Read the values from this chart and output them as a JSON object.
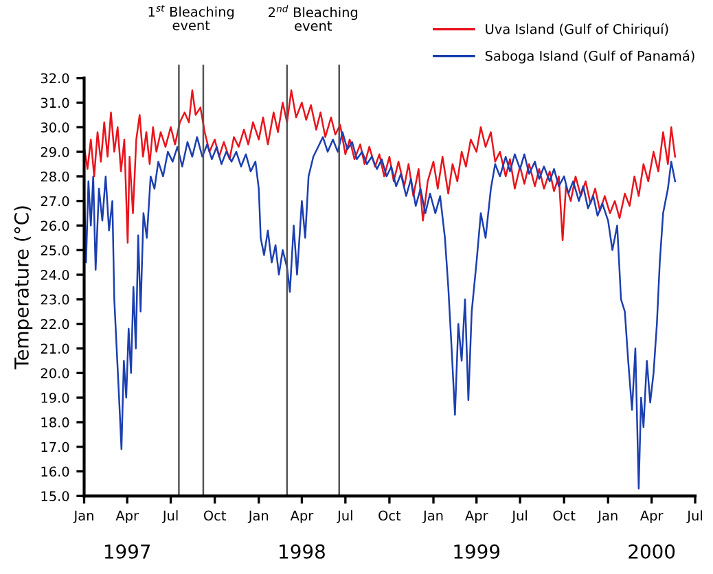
{
  "chart_data": {
    "type": "line",
    "ylabel": "Temperature (°C)",
    "legend": "top right",
    "grid": false,
    "marker": "none",
    "line_style": "solid",
    "xlim": [
      "1997-01-01",
      "2000-07-01"
    ],
    "xticks": [
      {
        "value": "1997-01-01",
        "label": "Jan"
      },
      {
        "value": "1997-04-01",
        "label": "Apr"
      },
      {
        "value": "1997-07-01",
        "label": "Jul"
      },
      {
        "value": "1997-10-01",
        "label": "Oct"
      },
      {
        "value": "1998-01-01",
        "label": "Jan"
      },
      {
        "value": "1998-04-01",
        "label": "Apr"
      },
      {
        "value": "1998-07-01",
        "label": "Jul"
      },
      {
        "value": "1998-10-01",
        "label": "Oct"
      },
      {
        "value": "1999-01-01",
        "label": "Jan"
      },
      {
        "value": "1999-04-01",
        "label": "Apr"
      },
      {
        "value": "1999-07-01",
        "label": "Jul"
      },
      {
        "value": "1999-10-01",
        "label": "Oct"
      },
      {
        "value": "2000-01-01",
        "label": "Jan"
      },
      {
        "value": "2000-04-01",
        "label": "Apr"
      },
      {
        "value": "2000-07-01",
        "label": "Jul"
      }
    ],
    "ylim": [
      15,
      32
    ],
    "yticks": [
      {
        "value": 15,
        "label": "15.0"
      },
      {
        "value": 16,
        "label": "16.0"
      },
      {
        "value": 17,
        "label": "17.0"
      },
      {
        "value": 18,
        "label": "18.0"
      },
      {
        "value": 19,
        "label": "19.0"
      },
      {
        "value": 20,
        "label": "20.0"
      },
      {
        "value": 21,
        "label": "21.0"
      },
      {
        "value": 22,
        "label": "22.0"
      },
      {
        "value": 23,
        "label": "23.0"
      },
      {
        "value": 24,
        "label": "24.0"
      },
      {
        "value": 25,
        "label": "25.0"
      },
      {
        "value": 26,
        "label": "26.0"
      },
      {
        "value": 27,
        "label": "27.0"
      },
      {
        "value": 28,
        "label": "28.0"
      },
      {
        "value": 29,
        "label": "29.0"
      },
      {
        "value": 30,
        "label": "30.0"
      },
      {
        "value": 31,
        "label": "31.0"
      },
      {
        "value": 32,
        "label": "32.0"
      }
    ],
    "ref_lines": [
      {
        "axis": "x",
        "value": "1997-07-18",
        "color": "#555555"
      },
      {
        "axis": "x",
        "value": "1997-09-07",
        "color": "#555555"
      },
      {
        "axis": "x",
        "value": "1998-03-01",
        "color": "#555555"
      },
      {
        "axis": "x",
        "value": "1998-06-18",
        "color": "#555555"
      }
    ],
    "annotations": [
      "1$^{st}$ Bleaching\nevent",
      "2$^{nd}$ Bleaching\nevent",
      "1997",
      "1998",
      "1999",
      "2000"
    ],
    "series": [
      {
        "name": "Uva Island (Gulf of Chiriquí)",
        "color": "#e8141c",
        "x": [
          "1997-01-01",
          "1997-01-08",
          "1997-01-15",
          "1997-01-22",
          "1997-01-29",
          "1997-02-05",
          "1997-02-12",
          "1997-02-19",
          "1997-02-26",
          "1997-03-05",
          "1997-03-12",
          "1997-03-19",
          "1997-03-26",
          "1997-04-02",
          "1997-04-06",
          "1997-04-13",
          "1997-04-20",
          "1997-04-27",
          "1997-05-04",
          "1997-05-11",
          "1997-05-18",
          "1997-05-25",
          "1997-06-01",
          "1997-06-10",
          "1997-06-20",
          "1997-07-01",
          "1997-07-10",
          "1997-07-20",
          "1997-07-30",
          "1997-08-08",
          "1997-08-15",
          "1997-08-22",
          "1997-09-01",
          "1997-09-10",
          "1997-09-20",
          "1997-10-01",
          "1997-10-10",
          "1997-10-20",
          "1997-11-01",
          "1997-11-10",
          "1997-11-20",
          "1997-12-01",
          "1997-12-10",
          "1997-12-20",
          "1998-01-01",
          "1998-01-10",
          "1998-01-20",
          "1998-02-01",
          "1998-02-10",
          "1998-02-20",
          "1998-03-01",
          "1998-03-10",
          "1998-03-20",
          "1998-04-01",
          "1998-04-10",
          "1998-04-20",
          "1998-05-01",
          "1998-05-10",
          "1998-05-20",
          "1998-06-01",
          "1998-06-10",
          "1998-06-20",
          "1998-07-01",
          "1998-07-10",
          "1998-07-20",
          "1998-08-01",
          "1998-08-10",
          "1998-08-20",
          "1998-09-01",
          "1998-09-10",
          "1998-09-20",
          "1998-10-01",
          "1998-10-10",
          "1998-10-20",
          "1998-11-01",
          "1998-11-10",
          "1998-11-20",
          "1998-12-01",
          "1998-12-10",
          "1998-12-20",
          "1999-01-01",
          "1999-01-10",
          "1999-01-20",
          "1999-02-01",
          "1999-02-10",
          "1999-02-20",
          "1999-03-01",
          "1999-03-10",
          "1999-03-20",
          "1999-04-01",
          "1999-04-10",
          "1999-04-20",
          "1999-05-01",
          "1999-05-10",
          "1999-05-20",
          "1999-06-01",
          "1999-06-10",
          "1999-06-20",
          "1999-07-01",
          "1999-07-10",
          "1999-07-20",
          "1999-08-01",
          "1999-08-10",
          "1999-08-20",
          "1999-09-01",
          "1999-09-10",
          "1999-09-20",
          "1999-09-28",
          "1999-10-05",
          "1999-10-15",
          "1999-10-25",
          "1999-11-05",
          "1999-11-15",
          "1999-11-25",
          "1999-12-05",
          "1999-12-15",
          "1999-12-25",
          "2000-01-05",
          "2000-01-15",
          "2000-01-25",
          "2000-02-05",
          "2000-02-15",
          "2000-02-25",
          "2000-03-05",
          "2000-03-15",
          "2000-03-25",
          "2000-04-05",
          "2000-04-15",
          "2000-04-25",
          "2000-05-05",
          "2000-05-12",
          "2000-05-20"
        ],
        "values": [
          29.2,
          28.3,
          29.5,
          28.0,
          29.8,
          28.6,
          30.2,
          28.8,
          30.6,
          29.0,
          30.0,
          28.2,
          29.5,
          25.3,
          28.8,
          26.5,
          29.5,
          30.5,
          28.8,
          29.8,
          28.5,
          30.0,
          29.0,
          29.8,
          29.2,
          30.0,
          29.3,
          30.2,
          30.6,
          30.2,
          31.5,
          30.5,
          30.8,
          29.8,
          29.0,
          29.5,
          28.8,
          29.4,
          28.7,
          29.6,
          29.2,
          29.9,
          29.3,
          30.2,
          29.5,
          30.4,
          29.3,
          30.6,
          29.8,
          31.0,
          30.2,
          31.5,
          30.4,
          31.0,
          30.3,
          30.9,
          29.9,
          30.6,
          29.6,
          30.4,
          29.7,
          30.1,
          28.9,
          29.5,
          28.7,
          29.3,
          28.5,
          29.2,
          28.4,
          28.9,
          28.0,
          28.8,
          27.8,
          28.6,
          27.6,
          28.5,
          27.2,
          28.3,
          26.2,
          27.8,
          28.6,
          27.5,
          28.8,
          27.3,
          28.5,
          27.8,
          29.0,
          28.4,
          29.5,
          29.0,
          30.0,
          29.2,
          29.8,
          28.6,
          29.0,
          28.0,
          28.7,
          27.5,
          28.4,
          27.7,
          28.5,
          27.6,
          28.3,
          27.5,
          28.2,
          27.4,
          28.0,
          25.4,
          27.6,
          27.0,
          28.0,
          27.2,
          27.8,
          26.9,
          27.5,
          26.6,
          27.2,
          26.5,
          27.0,
          26.3,
          27.3,
          26.8,
          28.0,
          27.2,
          28.5,
          27.8,
          29.0,
          28.2,
          29.8,
          28.5,
          30.0,
          28.8
        ]
      },
      {
        "name": "Saboga Island (Gulf of Panamá)",
        "color": "#1c3fb0",
        "x": [
          "1997-01-01",
          "1997-01-05",
          "1997-01-10",
          "1997-01-15",
          "1997-01-20",
          "1997-01-25",
          "1997-02-01",
          "1997-02-08",
          "1997-02-15",
          "1997-02-22",
          "1997-03-01",
          "1997-03-05",
          "1997-03-10",
          "1997-03-15",
          "1997-03-20",
          "1997-03-25",
          "1997-03-30",
          "1997-04-04",
          "1997-04-09",
          "1997-04-14",
          "1997-04-19",
          "1997-04-24",
          "1997-04-29",
          "1997-05-05",
          "1997-05-12",
          "1997-05-20",
          "1997-05-28",
          "1997-06-05",
          "1997-06-15",
          "1997-06-25",
          "1997-07-05",
          "1997-07-15",
          "1997-07-25",
          "1997-08-05",
          "1997-08-15",
          "1997-08-25",
          "1997-09-05",
          "1997-09-15",
          "1997-09-25",
          "1997-10-05",
          "1997-10-15",
          "1997-10-25",
          "1997-11-05",
          "1997-11-15",
          "1997-11-25",
          "1997-12-05",
          "1997-12-15",
          "1997-12-25",
          "1998-01-01",
          "1998-01-05",
          "1998-01-12",
          "1998-01-20",
          "1998-01-28",
          "1998-02-05",
          "1998-02-12",
          "1998-02-20",
          "1998-03-01",
          "1998-03-07",
          "1998-03-15",
          "1998-03-22",
          "1998-04-01",
          "1998-04-08",
          "1998-04-15",
          "1998-04-25",
          "1998-05-05",
          "1998-05-15",
          "1998-05-25",
          "1998-06-05",
          "1998-06-15",
          "1998-06-25",
          "1998-07-05",
          "1998-07-15",
          "1998-07-25",
          "1998-08-05",
          "1998-08-15",
          "1998-08-25",
          "1998-09-05",
          "1998-09-15",
          "1998-09-25",
          "1998-10-05",
          "1998-10-15",
          "1998-10-25",
          "1998-11-05",
          "1998-11-15",
          "1998-11-25",
          "1998-12-05",
          "1998-12-15",
          "1998-12-25",
          "1999-01-05",
          "1999-01-15",
          "1999-01-25",
          "1999-02-01",
          "1999-02-08",
          "1999-02-15",
          "1999-02-22",
          "1999-03-01",
          "1999-03-08",
          "1999-03-15",
          "1999-03-22",
          "1999-04-01",
          "1999-04-10",
          "1999-04-20",
          "1999-05-01",
          "1999-05-10",
          "1999-05-20",
          "1999-06-01",
          "1999-06-10",
          "1999-06-20",
          "1999-07-01",
          "1999-07-10",
          "1999-07-20",
          "1999-08-01",
          "1999-08-10",
          "1999-08-20",
          "1999-09-01",
          "1999-09-10",
          "1999-09-20",
          "1999-10-01",
          "1999-10-10",
          "1999-10-20",
          "1999-11-01",
          "1999-11-10",
          "1999-11-20",
          "1999-12-01",
          "1999-12-10",
          "1999-12-20",
          "2000-01-01",
          "2000-01-10",
          "2000-01-20",
          "2000-01-28",
          "2000-02-05",
          "2000-02-12",
          "2000-02-20",
          "2000-02-27",
          "2000-03-05",
          "2000-03-10",
          "2000-03-15",
          "2000-03-22",
          "2000-03-29",
          "2000-04-05",
          "2000-04-12",
          "2000-04-18",
          "2000-04-25",
          "2000-05-05",
          "2000-05-12",
          "2000-05-20"
        ],
        "values": [
          27.5,
          24.5,
          27.8,
          26.0,
          28.0,
          24.2,
          27.5,
          26.2,
          28.0,
          25.8,
          27.0,
          23.0,
          21.0,
          19.0,
          16.9,
          20.5,
          19.0,
          21.8,
          20.0,
          23.5,
          21.0,
          25.6,
          22.5,
          26.5,
          25.5,
          28.0,
          27.5,
          28.6,
          28.0,
          29.0,
          28.6,
          29.2,
          28.4,
          29.4,
          28.8,
          29.6,
          28.8,
          29.3,
          28.7,
          29.2,
          28.5,
          29.0,
          28.6,
          29.0,
          28.4,
          28.9,
          28.2,
          28.6,
          27.5,
          25.5,
          24.8,
          25.8,
          24.5,
          25.2,
          24.0,
          25.0,
          24.3,
          23.3,
          26.0,
          24.0,
          27.0,
          25.5,
          28.0,
          28.8,
          29.2,
          29.6,
          29.0,
          29.5,
          29.0,
          29.8,
          29.1,
          29.4,
          28.7,
          29.0,
          28.5,
          28.8,
          28.3,
          28.7,
          28.0,
          28.4,
          27.6,
          28.1,
          27.2,
          27.9,
          26.8,
          27.5,
          26.5,
          27.3,
          26.5,
          27.2,
          25.5,
          23.5,
          21.0,
          18.3,
          22.0,
          20.5,
          23.0,
          18.9,
          22.5,
          24.5,
          26.5,
          25.5,
          27.5,
          28.5,
          28.0,
          28.8,
          28.2,
          28.9,
          28.3,
          28.9,
          28.1,
          28.6,
          27.9,
          28.4,
          27.8,
          28.3,
          27.6,
          28.0,
          27.3,
          27.8,
          27.0,
          27.6,
          26.7,
          27.2,
          26.4,
          26.9,
          26.2,
          25.0,
          26.0,
          23.0,
          22.5,
          20.5,
          18.5,
          21.0,
          15.3,
          19.0,
          17.8,
          20.5,
          18.8,
          20.0,
          22.0,
          24.5,
          26.5,
          27.5,
          28.6,
          27.8
        ]
      }
    ]
  }
}
